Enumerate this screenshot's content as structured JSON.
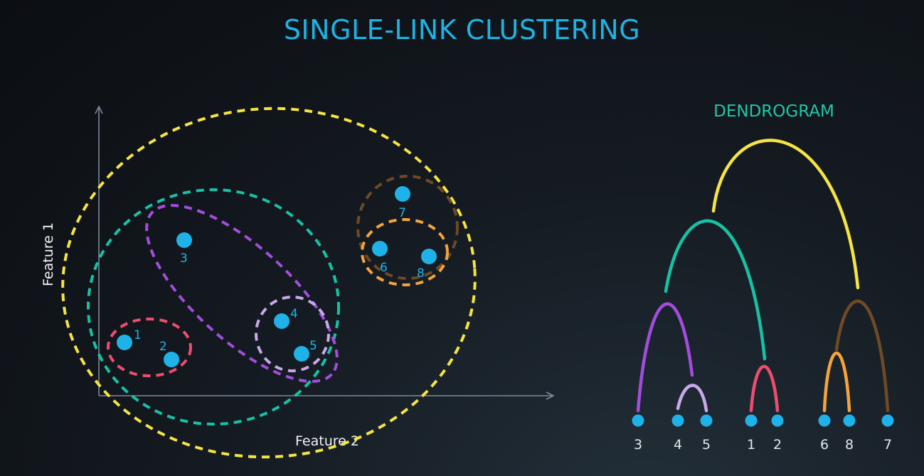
{
  "title": "SINGLE-LINK CLUSTERING",
  "scatter": {
    "xlabel": "Feature 2",
    "ylabel": "Feature 1",
    "points": [
      {
        "id": "1",
        "label": "1"
      },
      {
        "id": "2",
        "label": "2"
      },
      {
        "id": "3",
        "label": "3"
      },
      {
        "id": "4",
        "label": "4"
      },
      {
        "id": "5",
        "label": "5"
      },
      {
        "id": "6",
        "label": "6"
      },
      {
        "id": "7",
        "label": "7"
      },
      {
        "id": "8",
        "label": "8"
      }
    ],
    "clusters": [
      {
        "name": "cluster-1-2",
        "members": [
          "1",
          "2"
        ],
        "color": "#ee4d6f"
      },
      {
        "name": "cluster-4-5",
        "members": [
          "4",
          "5"
        ],
        "color": "#c9a9ea"
      },
      {
        "name": "cluster-6-8",
        "members": [
          "6",
          "8"
        ],
        "color": "#f4a43a"
      },
      {
        "name": "cluster-3-4-5",
        "members": [
          "3",
          "4",
          "5"
        ],
        "color": "#a24ddd"
      },
      {
        "name": "cluster-6-7-8",
        "members": [
          "6",
          "7",
          "8"
        ],
        "color": "#6e4a25"
      },
      {
        "name": "cluster-1-5",
        "members": [
          "1",
          "2",
          "3",
          "4",
          "5"
        ],
        "color": "#16c2a6"
      },
      {
        "name": "cluster-all",
        "members": [
          "1",
          "2",
          "3",
          "4",
          "5",
          "6",
          "7",
          "8"
        ],
        "color": "#f5e443"
      }
    ]
  },
  "dendrogram": {
    "title": "DENDROGRAM",
    "leaf_order": [
      "3",
      "4",
      "5",
      "1",
      "2",
      "6",
      "8",
      "7"
    ]
  }
}
